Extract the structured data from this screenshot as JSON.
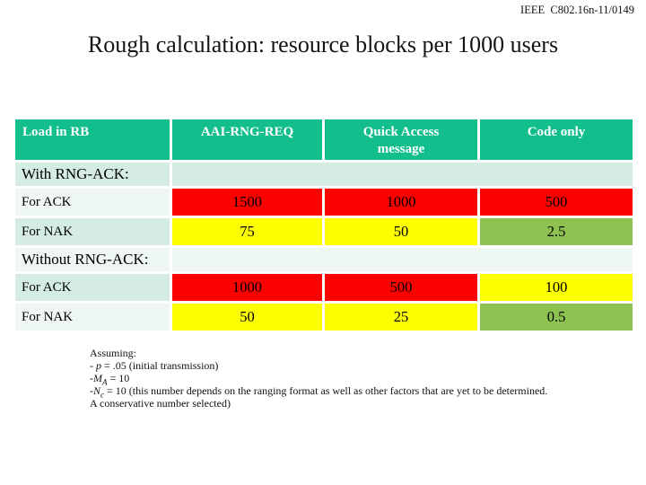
{
  "page": {
    "doc_ref": "IEEE  C802.16n-11/0149",
    "title": "Rough calculation: resource blocks per 1000 users"
  },
  "colors": {
    "header_teal": "#13be8d",
    "band_mint": "#d5ece3",
    "band_light": "#eef7f3",
    "high_red": "#fb0200",
    "mid_yellow": "#fdfe00",
    "low_green": "#8ec250",
    "header_text": "#ffffff"
  },
  "table": {
    "headers": [
      "Load in RB",
      "AAI-RNG-REQ",
      "Quick Access message",
      "Code only"
    ],
    "sections": [
      {
        "label": "With RNG-ACK:",
        "rows": [
          {
            "label": "For ACK",
            "cells": [
              {
                "value": "1500",
                "color": "red"
              },
              {
                "value": "1000",
                "color": "red"
              },
              {
                "value": "500",
                "color": "red"
              }
            ]
          },
          {
            "label": "For NAK",
            "cells": [
              {
                "value": "75",
                "color": "yellow"
              },
              {
                "value": "50",
                "color": "yellow"
              },
              {
                "value": "2.5",
                "color": "green"
              }
            ]
          }
        ]
      },
      {
        "label": "Without RNG-ACK:",
        "rows": [
          {
            "label": "For ACK",
            "cells": [
              {
                "value": "1000",
                "color": "red"
              },
              {
                "value": "500",
                "color": "red"
              },
              {
                "value": "100",
                "color": "yellow"
              }
            ]
          },
          {
            "label": "For NAK",
            "cells": [
              {
                "value": "50",
                "color": "yellow"
              },
              {
                "value": "25",
                "color": "yellow"
              },
              {
                "value": "0.5",
                "color": "green"
              }
            ]
          }
        ]
      }
    ]
  },
  "notes": {
    "heading": "Assuming:",
    "lines": [
      {
        "prefix": "- ",
        "sym": "p",
        "sub": "",
        "rest": " = .05 (initial transmission)"
      },
      {
        "prefix": "-",
        "sym": "M",
        "sub": "A",
        "rest": " = 10"
      },
      {
        "prefix": "-",
        "sym": "N",
        "sub": "c",
        "rest": " = 10 (this number depends on the ranging format as well as other factors that are yet to be determined."
      },
      {
        "prefix": "",
        "sym": "",
        "sub": "",
        "rest": "A conservative number selected)"
      }
    ]
  }
}
